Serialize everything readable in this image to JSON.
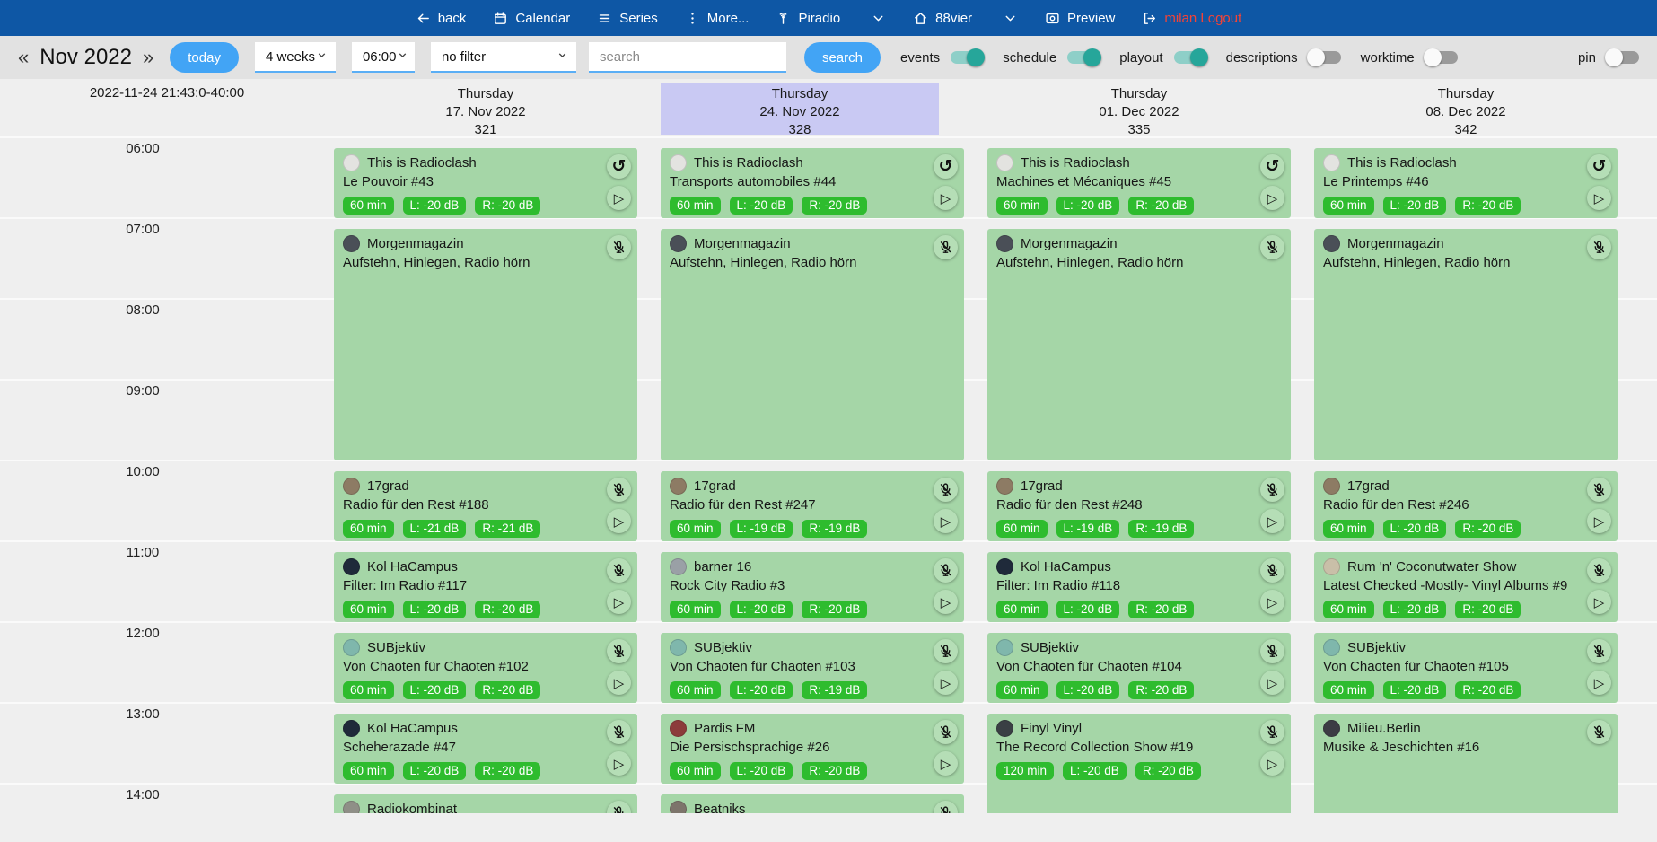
{
  "colors": {
    "nav_bg": "#0e57a5",
    "toolbar_bg": "#e2e2e2",
    "accent_blue": "#42a4f5",
    "toggle_on": "#26a69a",
    "event_green": "#a5d6a7",
    "badge_green": "#2ebc2e",
    "highlight_header": "#c9c9f3",
    "logout_red": "#f44336"
  },
  "navbar": {
    "items": [
      {
        "label": "back",
        "icon": "arrow-left"
      },
      {
        "label": "Calendar",
        "icon": "calendar"
      },
      {
        "label": "Series",
        "icon": "list"
      },
      {
        "label": "More...",
        "icon": "dots-vertical"
      },
      {
        "label": "Piradio",
        "icon": "broadcast",
        "chevron": true
      },
      {
        "label": "88vier",
        "icon": "home",
        "chevron": true
      },
      {
        "label": "Preview",
        "icon": "screen"
      },
      {
        "label": "milan Logout",
        "icon": "logout",
        "danger": true
      }
    ]
  },
  "toolbar": {
    "prev": "«",
    "month": "Nov 2022",
    "next": "»",
    "today_label": "today",
    "selects": [
      {
        "value": "4 weeks"
      },
      {
        "value": "06:00"
      },
      {
        "value": "no filter"
      }
    ],
    "search_placeholder": "search",
    "search_label": "search",
    "toggles": [
      {
        "label": "events",
        "on": true
      },
      {
        "label": "schedule",
        "on": true
      },
      {
        "label": "playout",
        "on": true
      },
      {
        "label": "descriptions",
        "on": false
      },
      {
        "label": "worktime",
        "on": false
      },
      {
        "label": "pin",
        "on": false
      }
    ]
  },
  "grid": {
    "now_label": "2022-11-24 21:43:0-40:00",
    "times": [
      "06:00",
      "07:00",
      "08:00",
      "09:00",
      "10:00",
      "11:00",
      "12:00",
      "13:00",
      "14:00"
    ],
    "days": [
      {
        "weekday": "Thursday",
        "date": "17. Nov 2022",
        "number": "321",
        "highlighted": false,
        "events": [
          {
            "show": "This is Radioclash",
            "title": "Le Pouvoir #43",
            "start": 6,
            "hours": 1,
            "badges": [
              "60 min",
              "L: -20 dB",
              "R: -20 dB"
            ],
            "icons": [
              "replay",
              "play"
            ],
            "avatar": "#e3e3e0"
          },
          {
            "show": "Morgenmagazin",
            "title": "Aufstehn, Hinlegen, Radio hörn",
            "start": 7,
            "hours": 3,
            "badges": [],
            "icons": [
              "mic-off"
            ],
            "avatar": "#4a4f57"
          },
          {
            "show": "17grad",
            "title": "Radio für den Rest #188",
            "start": 10,
            "hours": 1,
            "badges": [
              "60 min",
              "L: -21 dB",
              "R: -21 dB"
            ],
            "icons": [
              "mic-off",
              "play"
            ],
            "avatar": "#8d7b64"
          },
          {
            "show": "Kol HaCampus",
            "title": "Filter: Im Radio #117",
            "start": 11,
            "hours": 1,
            "badges": [
              "60 min",
              "L: -20 dB",
              "R: -20 dB"
            ],
            "icons": [
              "mic-off",
              "play"
            ],
            "avatar": "#1f2a3a"
          },
          {
            "show": "SUBjektiv",
            "title": "Von Chaoten für Chaoten #102",
            "start": 12,
            "hours": 1,
            "badges": [
              "60 min",
              "L: -20 dB",
              "R: -20 dB"
            ],
            "icons": [
              "mic-off",
              "play"
            ],
            "avatar": "#7fb7ac"
          },
          {
            "show": "Kol HaCampus",
            "title": "Scheherazade #47",
            "start": 13,
            "hours": 1,
            "badges": [
              "60 min",
              "L: -20 dB",
              "R: -20 dB"
            ],
            "icons": [
              "mic-off",
              "play"
            ],
            "avatar": "#1f2a3a"
          },
          {
            "show": "Radiokombinat",
            "title": "",
            "start": 14,
            "hours": 1,
            "badges": [],
            "icons": [
              "mic-off"
            ],
            "avatar": "#8f8f87"
          }
        ]
      },
      {
        "weekday": "Thursday",
        "date": "24. Nov 2022",
        "number": "328",
        "highlighted": true,
        "events": [
          {
            "show": "This is Radioclash",
            "title": "Transports automobiles #44",
            "start": 6,
            "hours": 1,
            "badges": [
              "60 min",
              "L: -20 dB",
              "R: -20 dB"
            ],
            "icons": [
              "replay",
              "play"
            ],
            "avatar": "#e3e3e0"
          },
          {
            "show": "Morgenmagazin",
            "title": "Aufstehn, Hinlegen, Radio hörn",
            "start": 7,
            "hours": 3,
            "badges": [],
            "icons": [
              "mic-off"
            ],
            "avatar": "#4a4f57"
          },
          {
            "show": "17grad",
            "title": "Radio für den Rest #247",
            "start": 10,
            "hours": 1,
            "badges": [
              "60 min",
              "L: -19 dB",
              "R: -19 dB"
            ],
            "icons": [
              "mic-off",
              "play"
            ],
            "avatar": "#8d7b64"
          },
          {
            "show": "barner 16",
            "title": "Rock City Radio #3",
            "start": 11,
            "hours": 1,
            "badges": [
              "60 min",
              "L: -20 dB",
              "R: -20 dB"
            ],
            "icons": [
              "mic-off",
              "play"
            ],
            "avatar": "#9aa0a6"
          },
          {
            "show": "SUBjektiv",
            "title": "Von Chaoten für Chaoten #103",
            "start": 12,
            "hours": 1,
            "badges": [
              "60 min",
              "L: -20 dB",
              "R: -19 dB"
            ],
            "icons": [
              "mic-off",
              "play"
            ],
            "avatar": "#7fb7ac"
          },
          {
            "show": "Pardis FM",
            "title": "Die Persischsprachige #26",
            "start": 13,
            "hours": 1,
            "badges": [
              "60 min",
              "L: -20 dB",
              "R: -20 dB"
            ],
            "icons": [
              "mic-off",
              "play"
            ],
            "avatar": "#8c3b3b"
          },
          {
            "show": "Beatniks",
            "title": "",
            "start": 14,
            "hours": 1,
            "badges": [],
            "icons": [
              "mic-off"
            ],
            "avatar": "#7d756b"
          }
        ]
      },
      {
        "weekday": "Thursday",
        "date": "01. Dec 2022",
        "number": "335",
        "highlighted": false,
        "events": [
          {
            "show": "This is Radioclash",
            "title": "Machines et Mécaniques #45",
            "start": 6,
            "hours": 1,
            "badges": [
              "60 min",
              "L: -20 dB",
              "R: -20 dB"
            ],
            "icons": [
              "replay",
              "play"
            ],
            "avatar": "#e3e3e0"
          },
          {
            "show": "Morgenmagazin",
            "title": "Aufstehn, Hinlegen, Radio hörn",
            "start": 7,
            "hours": 3,
            "badges": [],
            "icons": [
              "mic-off"
            ],
            "avatar": "#4a4f57"
          },
          {
            "show": "17grad",
            "title": "Radio für den Rest #248",
            "start": 10,
            "hours": 1,
            "badges": [
              "60 min",
              "L: -19 dB",
              "R: -19 dB"
            ],
            "icons": [
              "mic-off",
              "play"
            ],
            "avatar": "#8d7b64"
          },
          {
            "show": "Kol HaCampus",
            "title": "Filter: Im Radio #118",
            "start": 11,
            "hours": 1,
            "badges": [
              "60 min",
              "L: -20 dB",
              "R: -20 dB"
            ],
            "icons": [
              "mic-off",
              "play"
            ],
            "avatar": "#1f2a3a"
          },
          {
            "show": "SUBjektiv",
            "title": "Von Chaoten für Chaoten #104",
            "start": 12,
            "hours": 1,
            "badges": [
              "60 min",
              "L: -20 dB",
              "R: -20 dB"
            ],
            "icons": [
              "mic-off",
              "play"
            ],
            "avatar": "#7fb7ac"
          },
          {
            "show": "Finyl Vinyl",
            "title": "The Record Collection Show #19",
            "start": 13,
            "hours": 2,
            "badges": [
              "120 min",
              "L: -20 dB",
              "R: -20 dB"
            ],
            "icons": [
              "mic-off",
              "play"
            ],
            "avatar": "#3a3f44"
          }
        ]
      },
      {
        "weekday": "Thursday",
        "date": "08. Dec 2022",
        "number": "342",
        "highlighted": false,
        "events": [
          {
            "show": "This is Radioclash",
            "title": "Le Printemps #46",
            "start": 6,
            "hours": 1,
            "badges": [
              "60 min",
              "L: -20 dB",
              "R: -20 dB"
            ],
            "icons": [
              "replay",
              "play"
            ],
            "avatar": "#e3e3e0"
          },
          {
            "show": "Morgenmagazin",
            "title": "Aufstehn, Hinlegen, Radio hörn",
            "start": 7,
            "hours": 3,
            "badges": [],
            "icons": [
              "mic-off"
            ],
            "avatar": "#4a4f57"
          },
          {
            "show": "17grad",
            "title": "Radio für den Rest #246",
            "start": 10,
            "hours": 1,
            "badges": [
              "60 min",
              "L: -20 dB",
              "R: -20 dB"
            ],
            "icons": [
              "mic-off",
              "play"
            ],
            "avatar": "#8d7b64"
          },
          {
            "show": "Rum 'n' Coconutwater Show",
            "title": "Latest Checked -Mostly- Vinyl Albums #9",
            "start": 11,
            "hours": 1,
            "badges": [
              "60 min",
              "L: -20 dB",
              "R: -20 dB"
            ],
            "icons": [
              "mic-off",
              "play"
            ],
            "avatar": "#c9bfa8"
          },
          {
            "show": "SUBjektiv",
            "title": "Von Chaoten für Chaoten #105",
            "start": 12,
            "hours": 1,
            "badges": [
              "60 min",
              "L: -20 dB",
              "R: -20 dB"
            ],
            "icons": [
              "mic-off",
              "play"
            ],
            "avatar": "#7fb7ac"
          },
          {
            "show": "Milieu.Berlin",
            "title": "Musike & Jeschichten #16",
            "start": 13,
            "hours": 2,
            "badges": [],
            "icons": [
              "mic-off"
            ],
            "avatar": "#3c3c44"
          }
        ]
      }
    ]
  }
}
